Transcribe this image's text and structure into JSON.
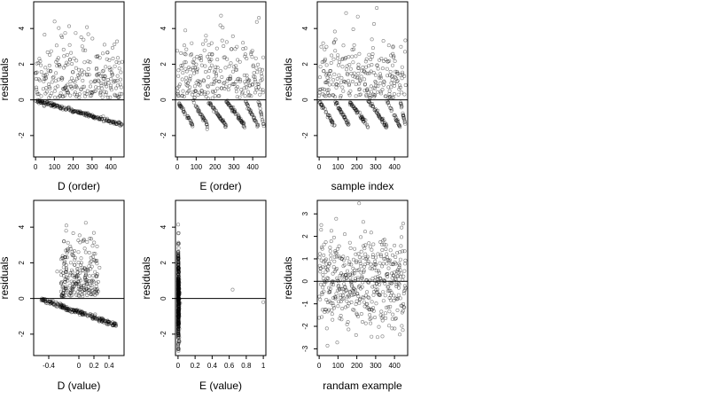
{
  "chart_data": [
    {
      "id": "d-order",
      "type": "scatter",
      "xlabel": "D (order)",
      "ylabel": "residuals",
      "xlim": [
        -10,
        470
      ],
      "ylim": [
        -3.2,
        5.5
      ],
      "xticks": [
        0,
        100,
        200,
        300,
        400
      ],
      "yticks": [
        -2,
        0,
        2,
        4
      ],
      "hline": 0,
      "pattern": "order-decline",
      "seed": 11
    },
    {
      "id": "e-order",
      "type": "scatter",
      "xlabel": "E (order)",
      "ylabel": "residuals",
      "xlim": [
        -10,
        470
      ],
      "ylim": [
        -3.2,
        5.5
      ],
      "xticks": [
        0,
        100,
        200,
        300,
        400
      ],
      "yticks": [
        -2,
        0,
        2,
        4
      ],
      "hline": 0,
      "pattern": "order-segments",
      "seed": 23
    },
    {
      "id": "sample-index",
      "type": "scatter",
      "xlabel": "sample index",
      "ylabel": "residuals",
      "xlim": [
        -10,
        470
      ],
      "ylim": [
        -3.2,
        5.5
      ],
      "xticks": [
        0,
        100,
        200,
        300,
        400
      ],
      "yticks": [
        -2,
        0,
        2,
        4
      ],
      "hline": 0,
      "pattern": "order-segments",
      "seed": 37
    },
    {
      "id": "d-value",
      "type": "scatter",
      "xlabel": "D (value)",
      "ylabel": "residuals",
      "xlim": [
        -0.6,
        0.6
      ],
      "ylim": [
        -3.2,
        5.5
      ],
      "xticks": [
        -0.4,
        0.0,
        0.2,
        0.4
      ],
      "yticks": [
        -2,
        0,
        2,
        4
      ],
      "hline": 0,
      "pattern": "value-decline",
      "seed": 51
    },
    {
      "id": "e-value",
      "type": "scatter",
      "xlabel": "E (value)",
      "ylabel": "residuals",
      "xlim": [
        -0.03,
        1.03
      ],
      "ylim": [
        -3.2,
        5.5
      ],
      "xticks": [
        0.0,
        0.2,
        0.4,
        0.6,
        0.8,
        1.0
      ],
      "yticks": [
        -2,
        0,
        2,
        4
      ],
      "hline": 0,
      "pattern": "value-cluster",
      "extra_points": [
        [
          0.64,
          0.5
        ],
        [
          1.0,
          -0.2
        ]
      ],
      "seed": 67
    },
    {
      "id": "random-example",
      "type": "scatter",
      "xlabel": "randam example",
      "ylabel": "residuals",
      "xlim": [
        -10,
        470
      ],
      "ylim": [
        -3.3,
        3.6
      ],
      "xticks": [
        0,
        100,
        200,
        300,
        400
      ],
      "yticks": [
        -3,
        -2,
        -1,
        0,
        1,
        2,
        3
      ],
      "hline": 0,
      "pattern": "random-normal",
      "seed": 83
    }
  ]
}
